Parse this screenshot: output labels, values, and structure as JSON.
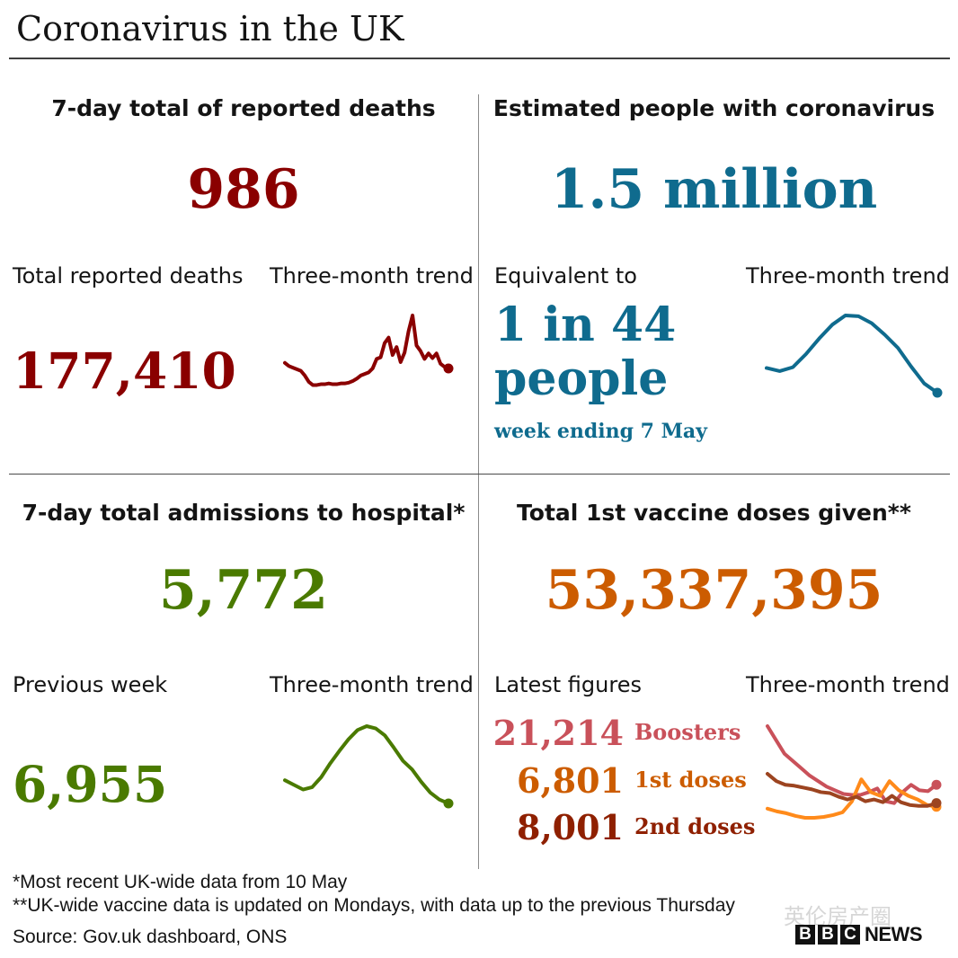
{
  "header": {
    "title": "Coronavirus in the UK"
  },
  "panels": {
    "deaths": {
      "title": "7-day total of reported deaths",
      "headline": "986",
      "color": "#8a0000",
      "sub_label": "Total reported deaths",
      "sub_value": "177,410",
      "trend_label": "Three-month trend"
    },
    "infections": {
      "title": "Estimated people with coronavirus",
      "headline": "1.5 million",
      "color": "#0f6b8e",
      "sub_label": "Equivalent to",
      "sub_value_line1": "1 in 44",
      "sub_value_line2": "people",
      "sub_note": "week ending 7 May",
      "trend_label": "Three-month trend"
    },
    "hospital": {
      "title": "7-day total admissions to hospital*",
      "headline": "5,772",
      "color": "#4a7a00",
      "sub_label": "Previous week",
      "sub_value": "6,955",
      "trend_label": "Three-month trend"
    },
    "vaccines": {
      "title": "Total 1st vaccine doses given**",
      "headline": "53,337,395",
      "color": "#cc5c00",
      "sub_label": "Latest figures",
      "trend_label": "Three-month trend",
      "latest": [
        {
          "value": "21,214",
          "label": "Boosters",
          "color": "#c9515a"
        },
        {
          "value": "6,801",
          "label": "1st doses",
          "color": "#cc5c00"
        },
        {
          "value": "8,001",
          "label": "2nd doses",
          "color": "#8f2000"
        }
      ]
    }
  },
  "footer": {
    "note1": "*Most recent UK-wide data from 10 May",
    "note2": "**UK-wide vaccine data is updated on Mondays, with data up to the previous Thursday",
    "source": "Source: Gov.uk dashboard, ONS",
    "brand_letters": [
      "B",
      "B",
      "C"
    ],
    "brand_word": "NEWS",
    "watermark": "英伦房产圈"
  },
  "chart_data": [
    {
      "type": "line",
      "title": "7-day total of reported deaths — Three-month trend",
      "xlabel": "",
      "ylabel": "",
      "note": "Relative sparkline shape (0 = low, 100 = high), no axes shown",
      "series": [
        {
          "name": "Deaths",
          "color": "#8a0000",
          "values": [
            40,
            36,
            34,
            32,
            30,
            24,
            16,
            12,
            12,
            13,
            13,
            14,
            13,
            13,
            14,
            14,
            15,
            17,
            20,
            24,
            26,
            28,
            33,
            45,
            47,
            65,
            72,
            50,
            60,
            41,
            53,
            80,
            100,
            62,
            55,
            45,
            52,
            46,
            52,
            39,
            35,
            33
          ]
        }
      ]
    },
    {
      "type": "line",
      "title": "Estimated people with coronavirus — Three-month trend",
      "xlabel": "",
      "ylabel": "",
      "note": "Relative sparkline shape (0 = low, 100 = high), weekly points",
      "series": [
        {
          "name": "Estimated infections",
          "color": "#0f6b8e",
          "values": [
            32,
            28,
            33,
            50,
            70,
            88,
            100,
            99,
            90,
            75,
            58,
            34,
            12,
            0
          ]
        }
      ]
    },
    {
      "type": "line",
      "title": "7-day total admissions to hospital — Three-month trend",
      "xlabel": "",
      "ylabel": "",
      "note": "Relative sparkline shape (0 = low, 100 = high)",
      "series": [
        {
          "name": "Admissions",
          "color": "#4a7a00",
          "values": [
            30,
            24,
            18,
            21,
            34,
            52,
            68,
            83,
            95,
            100,
            97,
            88,
            72,
            55,
            44,
            28,
            14,
            5,
            0
          ]
        }
      ]
    },
    {
      "type": "line",
      "title": "Vaccine doses — Three-month trend",
      "xlabel": "",
      "ylabel": "",
      "note": "Relative sparkline shape (0 = low, 100 = high), three series",
      "series": [
        {
          "name": "Boosters",
          "color": "#c9515a",
          "values": [
            100,
            85,
            70,
            62,
            54,
            46,
            40,
            34,
            30,
            26,
            25,
            25,
            28,
            32,
            18,
            16,
            28,
            36,
            30,
            29,
            36
          ]
        },
        {
          "name": "1st doses",
          "color": "#ff8a1a",
          "values": [
            10,
            7,
            5,
            2,
            0,
            0,
            1,
            3,
            6,
            18,
            42,
            28,
            24,
            40,
            30,
            24,
            20,
            14,
            12
          ]
        },
        {
          "name": "2nd doses",
          "color": "#9c4420",
          "values": [
            48,
            40,
            36,
            35,
            33,
            31,
            28,
            27,
            23,
            20,
            23,
            18,
            20,
            17,
            24,
            17,
            14,
            13,
            13,
            16
          ]
        }
      ]
    }
  ]
}
